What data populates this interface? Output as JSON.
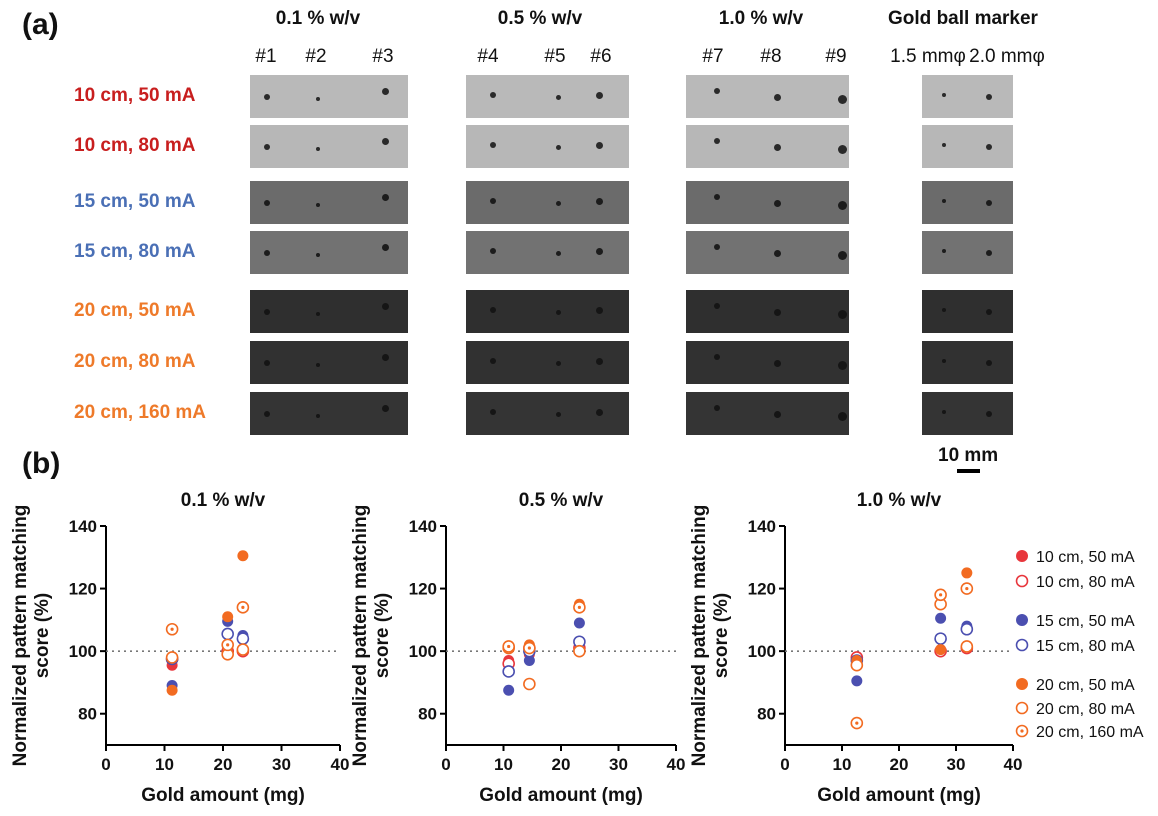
{
  "panels": {
    "a": "(a)",
    "b": "(b)"
  },
  "image_grid": {
    "groups": [
      {
        "title": "0.1 % w/v",
        "ids": [
          "#1",
          "#2",
          "#3"
        ]
      },
      {
        "title": "0.5 % w/v",
        "ids": [
          "#4",
          "#5",
          "#6"
        ]
      },
      {
        "title": "1.0 % w/v",
        "ids": [
          "#7",
          "#8",
          "#9"
        ]
      },
      {
        "title": "Gold ball marker",
        "ids": [
          "1.5 mmφ",
          "2.0 mmφ"
        ]
      }
    ],
    "rows": [
      {
        "label": "10 cm, 50 mA",
        "color": "#c81e1e",
        "bg": "#b9b9b9"
      },
      {
        "label": "10 cm, 80 mA",
        "color": "#c81e1e",
        "bg": "#b7b7b7"
      },
      {
        "label": "15 cm, 50 mA",
        "color": "#4a6fb5",
        "bg": "#6b6b6b"
      },
      {
        "label": "15 cm, 80 mA",
        "color": "#4a6fb5",
        "bg": "#727272"
      },
      {
        "label": "20 cm, 50 mA",
        "color": "#ee7a2a",
        "bg": "#2f2f2f"
      },
      {
        "label": "20 cm, 80 mA",
        "color": "#ee7a2a",
        "bg": "#313131"
      },
      {
        "label": "20 cm, 160 mA",
        "color": "#ee7a2a",
        "bg": "#343434"
      }
    ],
    "scale_bar": "10 mm"
  },
  "legend": [
    {
      "label": "10 cm, 50 mA",
      "color": "#e8363c",
      "style": "filled"
    },
    {
      "label": "10 cm, 80 mA",
      "color": "#e8363c",
      "style": "open"
    },
    {
      "label": "15 cm, 50 mA",
      "color": "#4b4fb0",
      "style": "filled"
    },
    {
      "label": "15 cm, 80 mA",
      "color": "#4b4fb0",
      "style": "open"
    },
    {
      "label": "20 cm, 50 mA",
      "color": "#f26b21",
      "style": "filled"
    },
    {
      "label": "20 cm, 80 mA",
      "color": "#f26b21",
      "style": "open"
    },
    {
      "label": "20 cm, 160 mA",
      "color": "#f26b21",
      "style": "dotted"
    }
  ],
  "chart_data": [
    {
      "type": "scatter",
      "title": "0.1 % w/v",
      "xlabel": "Gold amount (mg)",
      "ylabel": "Normalized pattern matching score (%)",
      "xlim": [
        0,
        40
      ],
      "ylim": [
        70,
        140
      ],
      "xticks": [
        "0",
        "10",
        "20",
        "30",
        "40"
      ],
      "yticks": [
        "80",
        "100",
        "120",
        "140"
      ],
      "reference_line": 100,
      "series": [
        {
          "name": "10 cm, 50 mA",
          "x": [
            11.3,
            20.8,
            23.4
          ],
          "y": [
            95.5,
            100,
            100.5
          ]
        },
        {
          "name": "10 cm, 80 mA",
          "x": [
            11.3,
            20.8,
            23.4
          ],
          "y": [
            97.5,
            100,
            100
          ]
        },
        {
          "name": "15 cm, 50 mA",
          "x": [
            11.3,
            20.8,
            23.4
          ],
          "y": [
            89,
            109.5,
            105
          ]
        },
        {
          "name": "15 cm, 80 mA",
          "x": [
            11.3,
            20.8,
            23.4
          ],
          "y": [
            97.5,
            105.5,
            104
          ]
        },
        {
          "name": "20 cm, 50 mA",
          "x": [
            11.3,
            20.8,
            23.4
          ],
          "y": [
            87.5,
            111,
            130.5
          ]
        },
        {
          "name": "20 cm, 80 mA",
          "x": [
            11.3,
            20.8,
            23.4
          ],
          "y": [
            98,
            99,
            100.5
          ]
        },
        {
          "name": "20 cm, 160 mA",
          "x": [
            11.3,
            20.8,
            23.4
          ],
          "y": [
            107,
            102,
            114
          ]
        }
      ]
    },
    {
      "type": "scatter",
      "title": "0.5 % w/v",
      "xlabel": "Gold amount (mg)",
      "ylabel": "Normalized pattern matching score (%)",
      "xlim": [
        0,
        40
      ],
      "ylim": [
        70,
        140
      ],
      "xticks": [
        "0",
        "10",
        "20",
        "30",
        "40"
      ],
      "yticks": [
        "80",
        "100",
        "120",
        "140"
      ],
      "reference_line": 100,
      "series": [
        {
          "name": "10 cm, 50 mA",
          "x": [
            10.9,
            14.5,
            23.2
          ],
          "y": [
            97,
            99,
            101
          ]
        },
        {
          "name": "10 cm, 80 mA",
          "x": [
            10.9,
            14.5,
            23.2
          ],
          "y": [
            96,
            101,
            101
          ]
        },
        {
          "name": "15 cm, 50 mA",
          "x": [
            10.9,
            14.5,
            23.2
          ],
          "y": [
            87.5,
            97,
            109
          ]
        },
        {
          "name": "15 cm, 80 mA",
          "x": [
            10.9,
            14.5,
            23.2
          ],
          "y": [
            93.5,
            100,
            103
          ]
        },
        {
          "name": "20 cm, 50 mA",
          "x": [
            10.9,
            14.5,
            23.2
          ],
          "y": [
            101.5,
            102,
            115
          ]
        },
        {
          "name": "20 cm, 80 mA",
          "x": [
            10.9,
            14.5,
            23.2
          ],
          "y": [
            101,
            89.5,
            100
          ]
        },
        {
          "name": "20 cm, 160 mA",
          "x": [
            10.9,
            14.5,
            23.2
          ],
          "y": [
            101.5,
            101,
            114
          ]
        }
      ]
    },
    {
      "type": "scatter",
      "title": "1.0 % w/v",
      "xlabel": "Gold amount (mg)",
      "ylabel": "Normalized pattern matching score (%)",
      "xlim": [
        0,
        40
      ],
      "ylim": [
        70,
        140
      ],
      "xticks": [
        "0",
        "10",
        "20",
        "30",
        "40"
      ],
      "yticks": [
        "80",
        "100",
        "120",
        "140"
      ],
      "reference_line": 100,
      "series": [
        {
          "name": "10 cm, 50 mA",
          "x": [
            12.6,
            27.3,
            31.9
          ],
          "y": [
            97.5,
            100.5,
            101
          ]
        },
        {
          "name": "10 cm, 80 mA",
          "x": [
            12.6,
            27.3,
            31.9
          ],
          "y": [
            98,
            100,
            101
          ]
        },
        {
          "name": "15 cm, 50 mA",
          "x": [
            12.6,
            27.3,
            31.9
          ],
          "y": [
            90.5,
            110.5,
            108
          ]
        },
        {
          "name": "15 cm, 80 mA",
          "x": [
            12.6,
            27.3,
            31.9
          ],
          "y": [
            97,
            104,
            107
          ]
        },
        {
          "name": "20 cm, 50 mA",
          "x": [
            12.6,
            27.3,
            31.9
          ],
          "y": [
            97,
            100.5,
            125
          ]
        },
        {
          "name": "20 cm, 80 mA",
          "x": [
            12.6,
            27.3,
            31.9
          ],
          "y": [
            95.5,
            115,
            101.5
          ]
        },
        {
          "name": "20 cm, 160 mA",
          "x": [
            12.6,
            27.3,
            31.9
          ],
          "y": [
            77,
            118,
            120
          ]
        }
      ]
    }
  ]
}
